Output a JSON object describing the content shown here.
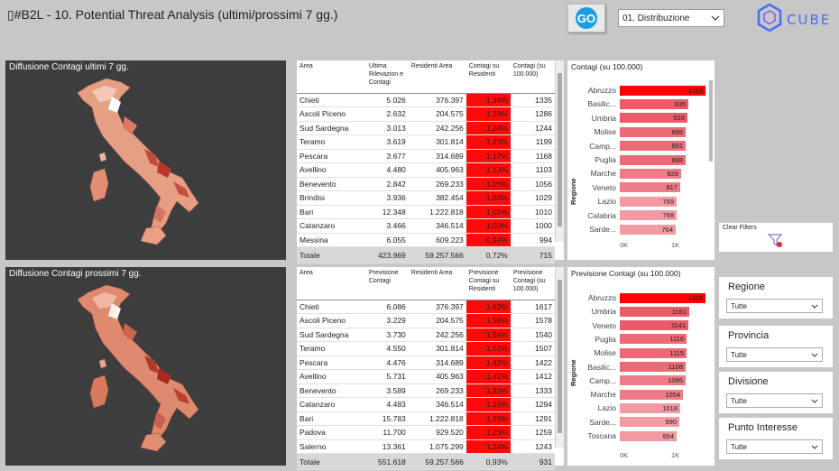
{
  "header": {
    "title": "▯#B2L - 10. Potential Threat Analysis (ultimi/prossimi 7 gg.)",
    "go_label": "GO",
    "dist_select": "01. Distribuzione",
    "logo_text": "CUBE"
  },
  "map_top": {
    "title": "Diffusione Contagi ultimi 7 gg."
  },
  "map_bottom": {
    "title": "Diffusione Contagi prossimi 7 gg."
  },
  "table_top": {
    "headers": [
      "Area",
      "Ultima Rilevazion e Contagi",
      "Residenti Area",
      "Contagi su Residenti",
      "Contagi (su 100.000)"
    ],
    "rows": [
      [
        "Chieti",
        "5.026",
        "376.397",
        "1,34%",
        "1335"
      ],
      [
        "Ascoli Piceno",
        "2.632",
        "204.575",
        "1,29%",
        "1286"
      ],
      [
        "Sud Sardegna",
        "3.013",
        "242.256",
        "1,24%",
        "1244"
      ],
      [
        "Teramo",
        "3.619",
        "301.814",
        "1,20%",
        "1199"
      ],
      [
        "Pescara",
        "3.677",
        "314.689",
        "1,17%",
        "1168"
      ],
      [
        "Avellino",
        "4.480",
        "405.963",
        "1,10%",
        "1103"
      ],
      [
        "Benevento",
        "2.842",
        "269.233",
        "1,06%",
        "1056"
      ],
      [
        "Brindisi",
        "3.936",
        "382.454",
        "1,03%",
        "1029"
      ],
      [
        "Bari",
        "12.348",
        "1.222.818",
        "1,01%",
        "1010"
      ],
      [
        "Catanzaro",
        "3.466",
        "346.514",
        "1,00%",
        "1000"
      ],
      [
        "Messina",
        "6.055",
        "609.223",
        "0,99%",
        "994"
      ]
    ],
    "total": [
      "Totale",
      "423.969",
      "59.257.566",
      "0,72%",
      "715"
    ]
  },
  "table_bottom": {
    "headers": [
      "Area",
      "Previsione Contagi",
      "Residenti Area",
      "Previsione Contagi su Residenti",
      "Previsione Contagi (su 100.000)"
    ],
    "rows": [
      [
        "Chieti",
        "6.086",
        "376.397",
        "1,62%",
        "1617"
      ],
      [
        "Ascoli Piceno",
        "3.229",
        "204.575",
        "1,58%",
        "1578"
      ],
      [
        "Sud Sardegna",
        "3.730",
        "242.256",
        "1,54%",
        "1540"
      ],
      [
        "Teramo",
        "4.550",
        "301.814",
        "1,51%",
        "1507"
      ],
      [
        "Pescara",
        "4.476",
        "314.689",
        "1,42%",
        "1422"
      ],
      [
        "Avellino",
        "5.731",
        "405.963",
        "1,41%",
        "1412"
      ],
      [
        "Benevento",
        "3.589",
        "269.233",
        "1,33%",
        "1333"
      ],
      [
        "Catanzaro",
        "4.483",
        "346.514",
        "1,29%",
        "1294"
      ],
      [
        "Bari",
        "15.783",
        "1.222.818",
        "1,29%",
        "1291"
      ],
      [
        "Padova",
        "11.700",
        "929.520",
        "1,26%",
        "1259"
      ],
      [
        "Salerno",
        "13.361",
        "1.075.299",
        "1,24%",
        "1243"
      ]
    ],
    "total": [
      "Totale",
      "551.618",
      "59.257.566",
      "0,93%",
      "931"
    ]
  },
  "chart_data": [
    {
      "type": "bar",
      "title": "Contagi (su 100.000)",
      "ylabel": "Regione",
      "xticks": [
        "0K",
        "1K"
      ],
      "xlim": [
        0,
        1200
      ],
      "categories": [
        "Abruzzo",
        "Basilic...",
        "Umbria",
        "Molise",
        "Camp...",
        "Puglia",
        "Marche",
        "Veneto",
        "Lazio",
        "Calabria",
        "Sarde..."
      ],
      "values": [
        1169,
        935,
        916,
        895,
        891,
        888,
        828,
        817,
        769,
        768,
        764
      ],
      "colors": [
        "#ff0000",
        "#ea5c6a",
        "#ea5c6a",
        "#ec6a76",
        "#ec6a76",
        "#ec6a76",
        "#ee7c86",
        "#ee7c86",
        "#f29aa2",
        "#f29aa2",
        "#f29aa2"
      ]
    },
    {
      "type": "bar",
      "title": "Previsione Contagi (su 100.000)",
      "ylabel": "Regione",
      "xticks": [
        "0K",
        "1K"
      ],
      "xlim": [
        0,
        1480
      ],
      "categories": [
        "Abruzzo",
        "Umbria",
        "Veneto",
        "Puglia",
        "Molise",
        "Basilic...",
        "Camp...",
        "Marche",
        "Lazio",
        "Sarde...",
        "Toscana"
      ],
      "values": [
        1428,
        1161,
        1141,
        1116,
        1115,
        1108,
        1095,
        1054,
        1018,
        990,
        954
      ],
      "colors": [
        "#ff0000",
        "#ea5c6a",
        "#ea5c6a",
        "#ec6a76",
        "#ec6a76",
        "#ec6a76",
        "#ee7c86",
        "#ee7c86",
        "#f29aa2",
        "#f29aa2",
        "#f29aa2"
      ]
    }
  ],
  "clear_filters": {
    "label": "Clear Filters"
  },
  "slicers": [
    {
      "title": "Regione",
      "value": "Tutte"
    },
    {
      "title": "Provincia",
      "value": "Tutte"
    },
    {
      "title": "Divisione",
      "value": "Tutte"
    },
    {
      "title": "Punto Interesse",
      "value": "Tutte"
    }
  ]
}
